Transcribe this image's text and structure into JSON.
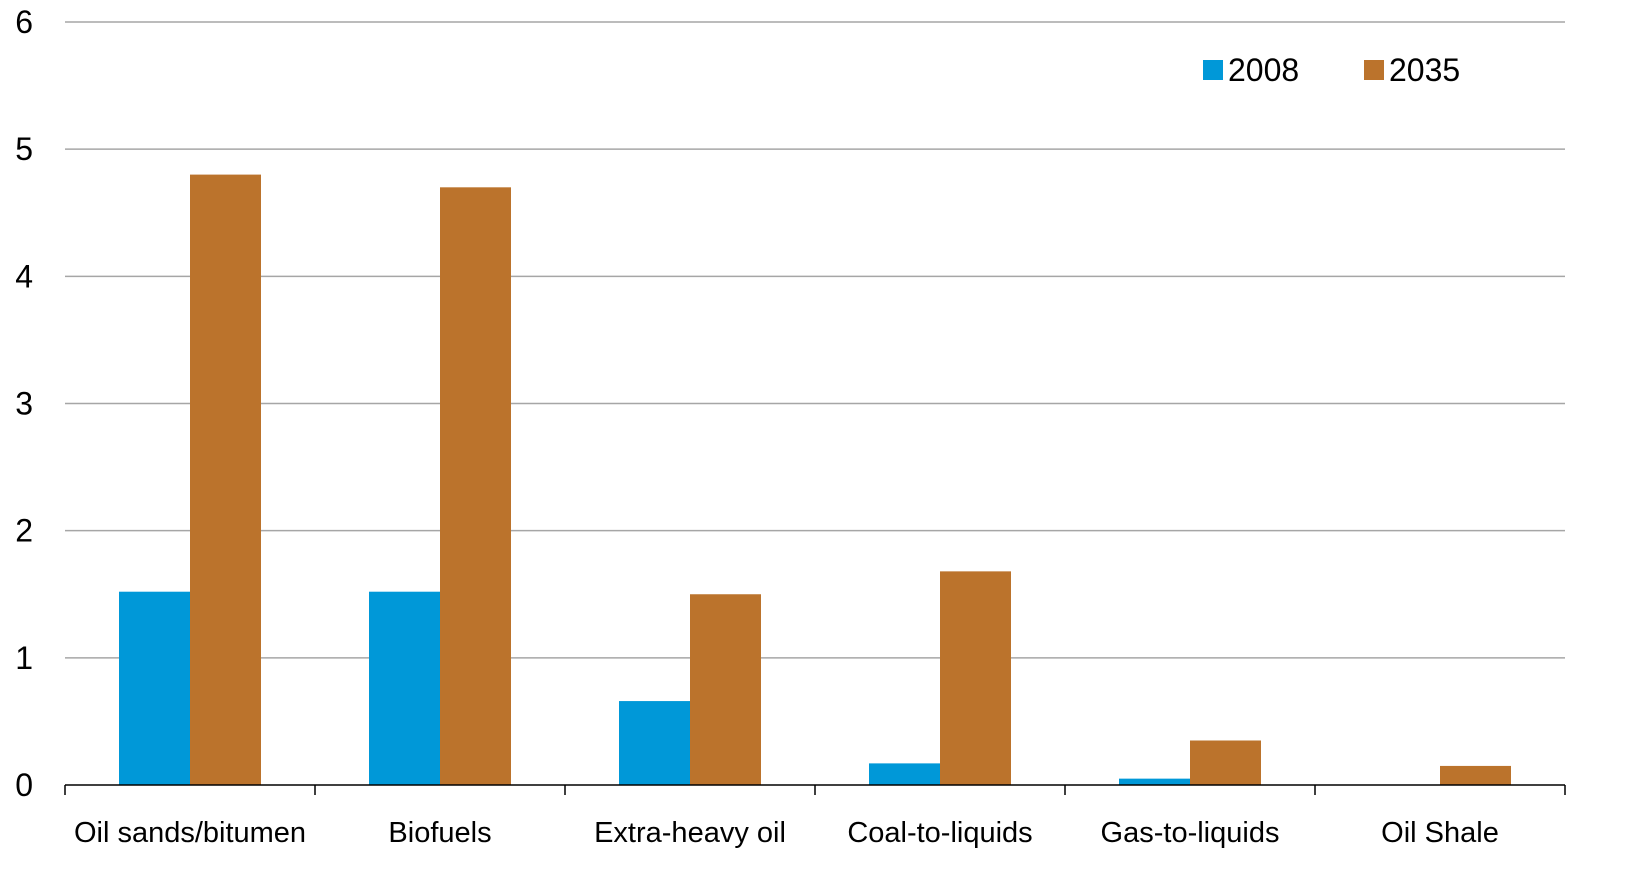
{
  "chart_data": {
    "type": "bar",
    "categories": [
      "Oil sands/bitumen",
      "Biofuels",
      "Extra-heavy oil",
      "Coal-to-liquids",
      "Gas-to-liquids",
      "Oil Shale"
    ],
    "series": [
      {
        "name": "2008",
        "values": [
          1.52,
          1.52,
          0.66,
          0.17,
          0.05,
          0.0
        ],
        "color": "#0098d8"
      },
      {
        "name": "2035",
        "values": [
          4.8,
          4.7,
          1.5,
          1.68,
          0.35,
          0.15
        ],
        "color": "#bb732c"
      }
    ],
    "ylim": [
      0,
      6
    ],
    "yticks": [
      "0",
      "1",
      "2",
      "3",
      "4",
      "5",
      "6"
    ],
    "grid": true,
    "legend": "top-right",
    "title": "",
    "xlabel": "",
    "ylabel": ""
  }
}
